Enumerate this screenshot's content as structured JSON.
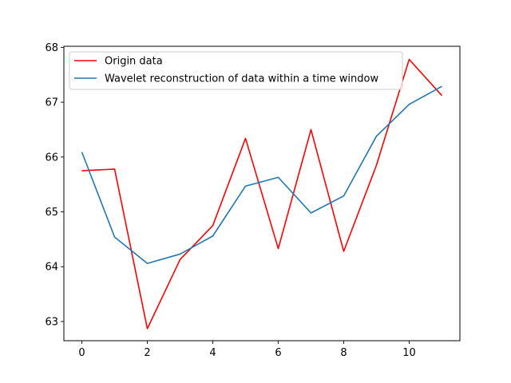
{
  "chart_data": {
    "type": "line",
    "title": "",
    "xlabel": "",
    "ylabel": "",
    "x": [
      0,
      1,
      2,
      3,
      4,
      5,
      6,
      7,
      8,
      9,
      10,
      11
    ],
    "xlim": [
      -0.55,
      11.55
    ],
    "ylim": [
      62.65,
      68.02
    ],
    "xticks": [
      0,
      2,
      4,
      6,
      8,
      10
    ],
    "yticks": [
      63,
      64,
      65,
      66,
      67,
      68
    ],
    "grid": false,
    "legend_position": "upper-left",
    "series": [
      {
        "name": "Origin data",
        "color": "#ff0000",
        "values": [
          65.75,
          65.78,
          62.87,
          64.13,
          64.75,
          66.34,
          64.33,
          66.5,
          64.28,
          65.85,
          67.78,
          67.12
        ]
      },
      {
        "name": "Wavelet reconstruction of data within a time window",
        "color": "#1f77b4",
        "values": [
          66.09,
          64.54,
          64.06,
          64.23,
          64.56,
          65.47,
          65.63,
          64.98,
          65.29,
          66.38,
          66.96,
          67.29
        ]
      }
    ]
  }
}
